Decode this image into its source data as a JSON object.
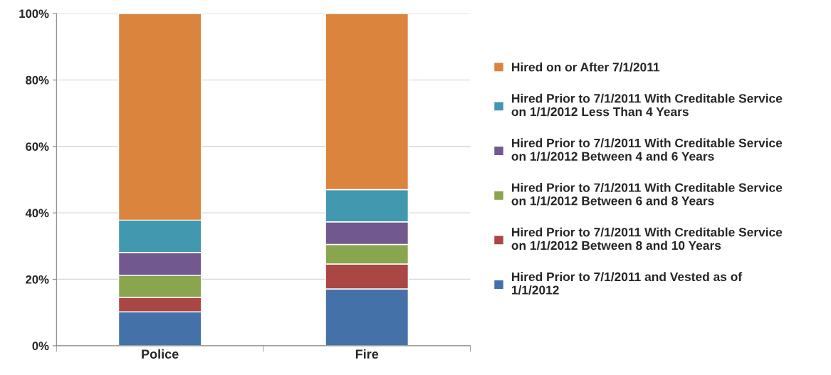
{
  "chart_data": {
    "type": "bar",
    "stacked": true,
    "categories": [
      "Police",
      "Fire"
    ],
    "series": [
      {
        "name": "Hired Prior to 7/1/2011 and Vested as of\n1/1/2012",
        "color": "#4472a8",
        "values": [
          10.2,
          17.1
        ]
      },
      {
        "name": "Hired Prior to 7/1/2011 With Creditable Service\non 1/1/2012 Between 8 and 10 Years",
        "color": "#aa4644",
        "values": [
          4.4,
          7.5
        ]
      },
      {
        "name": "Hired Prior to 7/1/2011 With Creditable Service\non 1/1/2012 Between 6 and 8 Years",
        "color": "#89a54e",
        "values": [
          6.6,
          5.9
        ]
      },
      {
        "name": "Hired Prior to 7/1/2011 With Creditable Service\non 1/1/2012 Between 4 and 6 Years",
        "color": "#71588f",
        "values": [
          6.9,
          6.8
        ]
      },
      {
        "name": "Hired Prior to 7/1/2011 With Creditable Service\non 1/1/2012 Less Than 4 Years",
        "color": "#4198af",
        "values": [
          9.7,
          9.7
        ]
      },
      {
        "name": "Hired on or After 7/1/2011",
        "color": "#db843d",
        "values": [
          62.2,
          53.0
        ]
      }
    ],
    "ylim": [
      0,
      100
    ],
    "yticks": [
      {
        "value": 0,
        "label": "0%"
      },
      {
        "value": 20,
        "label": "20%"
      },
      {
        "value": 40,
        "label": "40%"
      },
      {
        "value": 60,
        "label": "60%"
      },
      {
        "value": 80,
        "label": "80%"
      },
      {
        "value": 100,
        "label": "100%"
      }
    ],
    "grid": "y",
    "legend": "right"
  }
}
